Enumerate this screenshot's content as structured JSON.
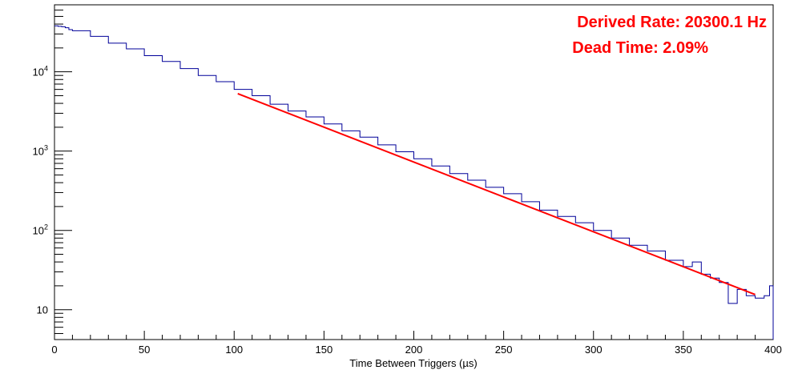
{
  "chart_data": {
    "type": "line",
    "title": "",
    "xlabel": "Time Between Triggers (µs)",
    "ylabel": "",
    "xlim": [
      0,
      400
    ],
    "ylim": [
      4.2,
      70000
    ],
    "y_scale": "log",
    "grid": false,
    "x_ticks": [
      0,
      50,
      100,
      150,
      200,
      250,
      300,
      350,
      400
    ],
    "x_tick_labels": [
      "0",
      "50",
      "100",
      "150",
      "200",
      "250",
      "300",
      "350",
      "400"
    ],
    "y_ticks": [
      {
        "value": 10,
        "base": "10",
        "exp": ""
      },
      {
        "value": 100,
        "base": "10",
        "exp": "2"
      },
      {
        "value": 1000,
        "base": "10",
        "exp": "3"
      },
      {
        "value": 10000,
        "base": "10",
        "exp": "4"
      }
    ],
    "annotations": [
      {
        "text": "Derived Rate: 20300.1 Hz",
        "color": "#ff0000"
      },
      {
        "text": "Dead Time: 2.09%",
        "color": "#ff0000"
      }
    ],
    "series": [
      {
        "color": "#000099",
        "style": "histogram",
        "x": [
          0,
          2,
          4,
          6,
          8,
          10,
          20,
          30,
          40,
          50,
          60,
          70,
          80,
          90,
          100,
          110,
          120,
          130,
          140,
          150,
          160,
          170,
          180,
          190,
          200,
          210,
          220,
          230,
          240,
          250,
          260,
          270,
          280,
          290,
          300,
          310,
          320,
          330,
          340,
          350,
          355,
          360,
          365,
          370,
          375,
          380,
          385,
          390,
          395,
          398,
          400
        ],
        "y": [
          38000,
          37500,
          37000,
          36000,
          34000,
          33000,
          28000,
          23000,
          19500,
          16000,
          13500,
          11000,
          9000,
          7500,
          6000,
          5000,
          3900,
          3200,
          2700,
          2200,
          1800,
          1500,
          1200,
          980,
          800,
          650,
          520,
          430,
          350,
          290,
          230,
          180,
          150,
          125,
          100,
          80,
          65,
          55,
          42,
          35,
          40,
          28,
          25,
          22,
          12,
          18,
          15,
          14,
          15,
          20,
          8
        ]
      },
      {
        "color": "#ff0000",
        "style": "fit",
        "x": [
          102,
          390
        ],
        "y": [
          5300,
          15.5
        ]
      }
    ]
  }
}
